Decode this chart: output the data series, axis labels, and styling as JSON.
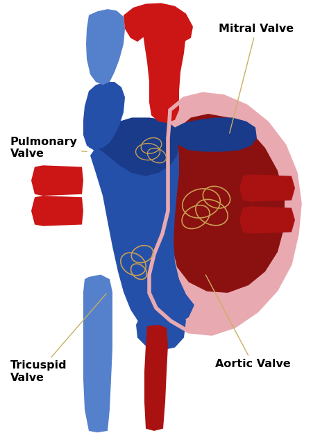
{
  "bg_color": "#ffffff",
  "figsize": [
    4.74,
    6.34
  ],
  "dpi": 100,
  "labels": {
    "pulmonary": "Pulmonary\nValve",
    "mitral": "Mitral Valve",
    "tricuspid": "Tricuspid\nValve",
    "aortic": "Aortic Valve"
  },
  "colors": {
    "red_dark": "#8B1010",
    "red_bright": "#CC1515",
    "red_mid": "#AA1212",
    "blue_dark": "#1a3a8a",
    "blue_mid": "#2550aa",
    "blue_light": "#5580cc",
    "pink_outer": "#e8aab0",
    "pink_inner": "#d49098",
    "tan_valve": "#c8a050",
    "alamy_bar": "#111111",
    "white": "#ffffff"
  }
}
